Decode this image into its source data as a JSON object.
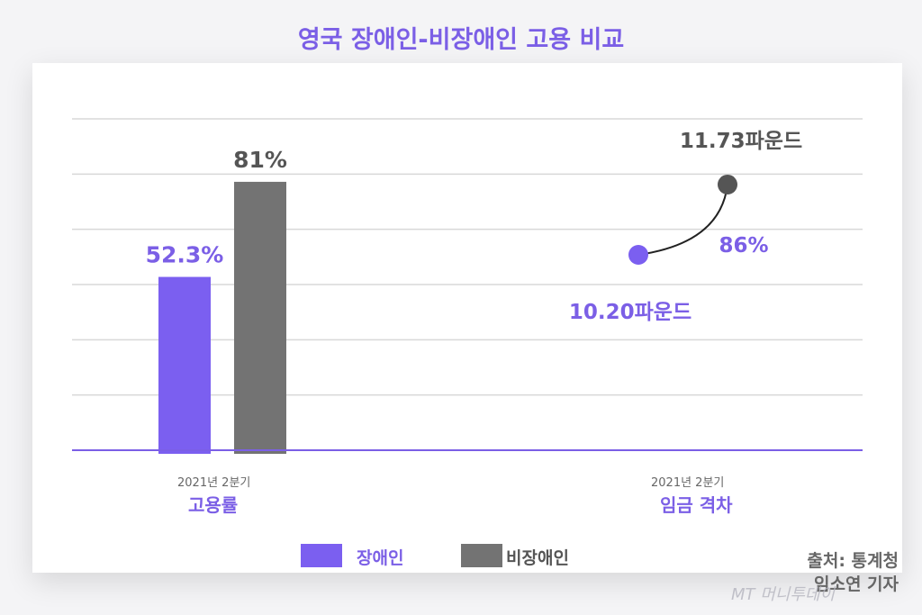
{
  "title": "영국 장애인-비장애인 고용 비교",
  "chart_data": {
    "type": "bar",
    "title": "영국 장애인-비장애인 고용 비교",
    "grid": true,
    "ylim": [
      0,
      100
    ],
    "colors": {
      "disabled": "#7b5ff0",
      "nondisabled": "#737373"
    },
    "groups": [
      {
        "period": "2021년 2분기",
        "label": "고용률",
        "values": [
          52.3,
          81
        ],
        "value_labels": [
          "52.3%",
          "81%"
        ]
      },
      {
        "period": "2021년 2분기",
        "label": "임금 격차",
        "values": [
          10.2,
          11.73
        ],
        "value_labels": [
          "10.20파운드",
          "11.73파운드"
        ],
        "ratio_label": "86%"
      }
    ],
    "legend": [
      "장애인",
      "비장애인"
    ],
    "legend_position": "bottom"
  },
  "source": "출처: 통계청",
  "reporter": "임소연 기자",
  "watermark": "MT 머니투데이"
}
